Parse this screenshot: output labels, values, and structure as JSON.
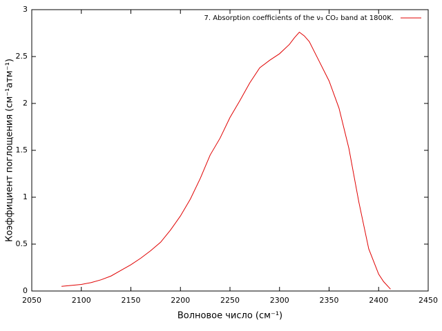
{
  "chart_data": {
    "type": "line",
    "x_label": "Волновое число (см⁻¹)",
    "y_label": "Коэффициент поглощения (см⁻¹атм⁻¹)",
    "x": [
      2080,
      2090,
      2100,
      2110,
      2120,
      2130,
      2140,
      2150,
      2160,
      2170,
      2180,
      2190,
      2200,
      2210,
      2220,
      2230,
      2240,
      2250,
      2260,
      2270,
      2280,
      2290,
      2300,
      2310,
      2315,
      2320,
      2325,
      2330,
      2340,
      2350,
      2360,
      2370,
      2380,
      2390,
      2400,
      2405,
      2412
    ],
    "series": [
      {
        "name": "7. Absorption coefficients of the ν₃ CO₂ band at 1800K.",
        "color": "#e00000",
        "values": [
          0.05,
          0.06,
          0.07,
          0.09,
          0.12,
          0.16,
          0.22,
          0.28,
          0.35,
          0.43,
          0.52,
          0.65,
          0.8,
          0.98,
          1.2,
          1.45,
          1.63,
          1.85,
          2.03,
          2.22,
          2.38,
          2.46,
          2.53,
          2.63,
          2.7,
          2.76,
          2.72,
          2.66,
          2.45,
          2.24,
          1.95,
          1.52,
          0.95,
          0.45,
          0.18,
          0.1,
          0.02
        ]
      }
    ],
    "xlim": [
      2050,
      2450
    ],
    "xticks": [
      2050,
      2100,
      2150,
      2200,
      2250,
      2300,
      2350,
      2400,
      2450
    ],
    "ylim": [
      0,
      3
    ],
    "yticks": [
      0,
      0.5,
      1,
      1.5,
      2,
      2.5,
      3
    ],
    "legend": "top-right",
    "grid": false
  }
}
